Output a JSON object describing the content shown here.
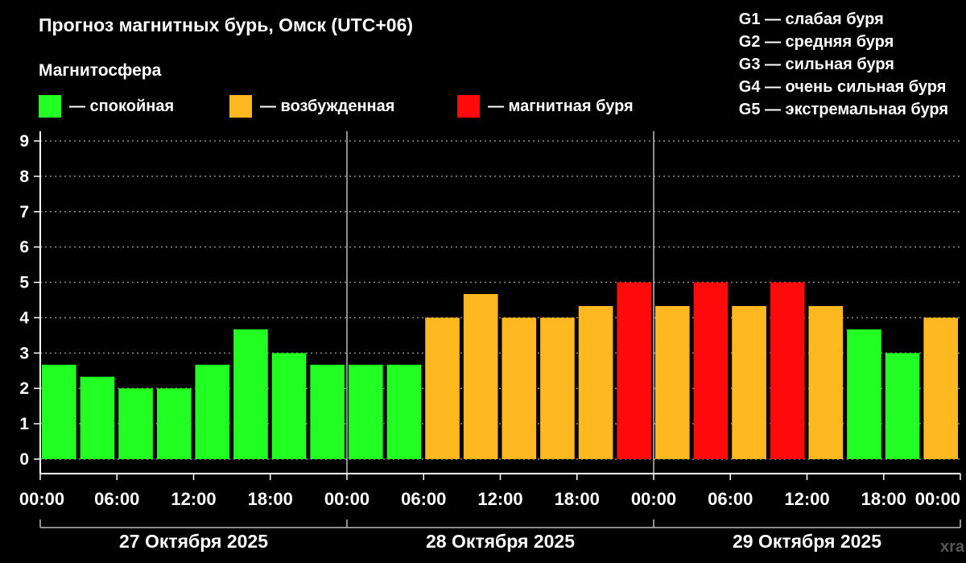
{
  "title": "Прогноз магнитных бурь, Омск (UTC+06)",
  "legend": {
    "heading": "Магнитосфера",
    "items": [
      {
        "label": "— спокойная",
        "color": "#22ff22"
      },
      {
        "label": "— возбужденная",
        "color": "#ffb81f"
      },
      {
        "label": "— магнитная буря",
        "color": "#ff0a0a"
      }
    ]
  },
  "g_scale": [
    "G1 — слабая буря",
    "G2 — средняя буря",
    "G3 — сильная буря",
    "G4 — очень сильная буря",
    "G5 — экстремальная буря"
  ],
  "watermark": "xra",
  "chart_data": {
    "type": "bar",
    "title": "Прогноз магнитных бурь, Омск (UTC+06)",
    "ylabel": "",
    "ylim": [
      0,
      9
    ],
    "yticks": [
      "0",
      "1",
      "2",
      "3",
      "4",
      "5",
      "6",
      "7",
      "8",
      "9"
    ],
    "grid": "dotted horizontal",
    "xticks": [
      "00:00",
      "06:00",
      "12:00",
      "18:00",
      "00:00",
      "06:00",
      "12:00",
      "18:00",
      "00:00",
      "06:00",
      "12:00",
      "18:00",
      "00:00"
    ],
    "days": [
      "27 Октября 2025",
      "28 Октября 2025",
      "29 Октября 2025"
    ],
    "bar_hours": [
      "00:00",
      "03:00",
      "06:00",
      "09:00",
      "12:00",
      "15:00",
      "18:00",
      "21:00",
      "00:00",
      "03:00",
      "06:00",
      "09:00",
      "12:00",
      "15:00",
      "18:00",
      "21:00",
      "00:00",
      "03:00",
      "06:00",
      "09:00",
      "12:00",
      "15:00",
      "18:00",
      "21:00"
    ],
    "values": [
      2.67,
      2.33,
      2.0,
      2.0,
      2.67,
      3.67,
      3.0,
      2.67,
      2.67,
      2.67,
      4.0,
      4.67,
      4.0,
      4.0,
      4.33,
      5.0,
      4.33,
      5.0,
      4.33,
      5.0,
      4.33,
      3.67,
      3.0,
      4.0
    ],
    "levels": [
      "calm",
      "calm",
      "calm",
      "calm",
      "calm",
      "calm",
      "calm",
      "calm",
      "calm",
      "calm",
      "excited",
      "excited",
      "excited",
      "excited",
      "excited",
      "storm",
      "excited",
      "storm",
      "excited",
      "storm",
      "excited",
      "calm",
      "calm",
      "excited"
    ],
    "colors": {
      "calm": "#22ff22",
      "excited": "#ffb81f",
      "storm": "#ff0a0a"
    }
  }
}
